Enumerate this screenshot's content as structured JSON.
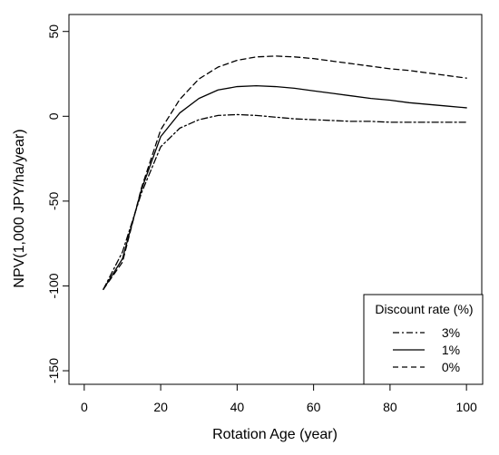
{
  "chart_data": {
    "type": "line",
    "title": "",
    "xlabel": "Rotation Age (year)",
    "ylabel": "NPV(1,000 JPY/ha/year)",
    "xlim": [
      0,
      100
    ],
    "ylim": [
      -150,
      50
    ],
    "x_ticks": [
      0,
      20,
      40,
      60,
      80,
      100
    ],
    "y_ticks": [
      -150,
      -100,
      -50,
      0,
      50
    ],
    "x": [
      5,
      10,
      15,
      20,
      25,
      30,
      35,
      40,
      45,
      50,
      55,
      60,
      65,
      70,
      75,
      80,
      85,
      90,
      95,
      100
    ],
    "series": [
      {
        "name": "3%",
        "style": "dashdot",
        "values": [
          -102,
          -80,
          -45,
          -18,
          -7,
          -2,
          0.5,
          1,
          0.5,
          -0.5,
          -1.5,
          -2,
          -2.5,
          -3,
          -3,
          -3.5,
          -3.5,
          -3.5,
          -3.5,
          -3.5
        ]
      },
      {
        "name": "1%",
        "style": "solid",
        "values": [
          -102,
          -84,
          -43,
          -12,
          2,
          10.5,
          15.5,
          17.5,
          18,
          17.5,
          16.5,
          15,
          13.5,
          12,
          10.5,
          9.5,
          8,
          7,
          6,
          5
        ]
      },
      {
        "name": "0%",
        "style": "dashed",
        "values": [
          -102,
          -86,
          -42,
          -8,
          10,
          22,
          29,
          33,
          35,
          35.5,
          35,
          34,
          32.5,
          31,
          29.5,
          28,
          27,
          25.5,
          24,
          22.5
        ]
      }
    ],
    "legend": {
      "title": "Discount rate (%)",
      "position": "bottom-right"
    },
    "grid": false
  }
}
